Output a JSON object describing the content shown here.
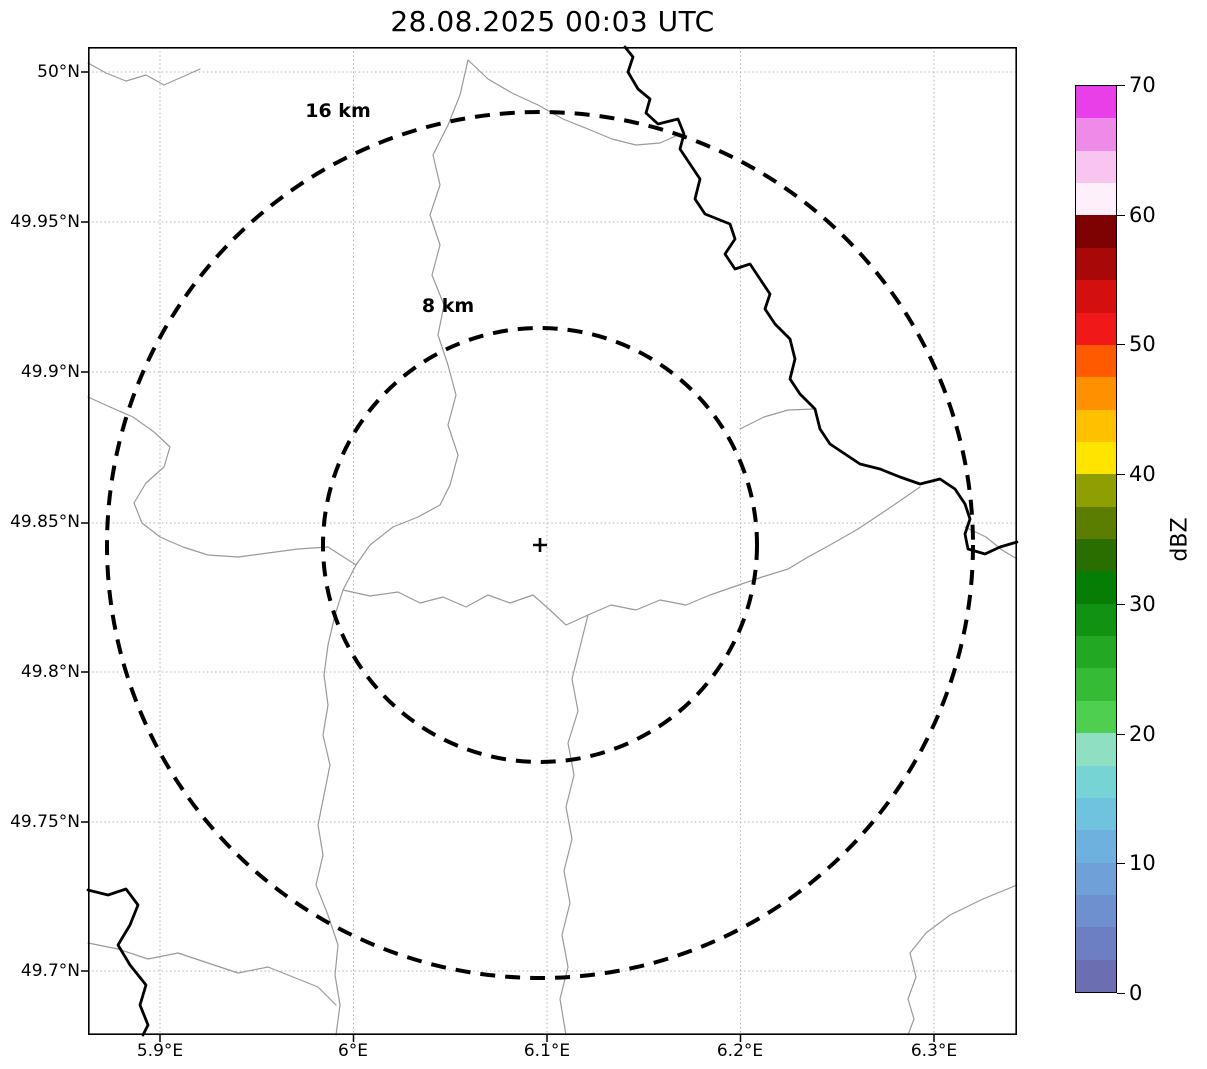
{
  "title": "28.08.2025 00:03 UTC",
  "axes": {
    "y_ticks": [
      "50°N",
      "49.95°N",
      "49.9°N",
      "49.85°N",
      "49.8°N",
      "49.75°N",
      "49.7°N"
    ],
    "x_ticks": [
      "5.9°E",
      "6°E",
      "6.1°E",
      "6.2°E",
      "6.3°E"
    ]
  },
  "rings": {
    "outer_label": "16 km",
    "inner_label": "8 km"
  },
  "colorbar": {
    "label": "dBZ",
    "min": 0,
    "max": 70,
    "ticks": [
      "0",
      "10",
      "20",
      "30",
      "40",
      "50",
      "60",
      "70"
    ],
    "tick_values": [
      0,
      10,
      20,
      30,
      40,
      50,
      60,
      70
    ],
    "colors": [
      "#6b6fb2",
      "#6d7fc2",
      "#6e90cf",
      "#6fa0d8",
      "#6fb1de",
      "#6fc3de",
      "#77d4d4",
      "#8fdfc3",
      "#4fcf4f",
      "#35bb35",
      "#22a822",
      "#129212",
      "#067e06",
      "#2a6e00",
      "#5c7e00",
      "#8f9e00",
      "#ffe400",
      "#ffc000",
      "#ff9000",
      "#ff5a00",
      "#f01818",
      "#d40f0f",
      "#a80808",
      "#7e0202",
      "#fdf0fb",
      "#f8c4f0",
      "#f08ae8",
      "#e93fe9"
    ]
  },
  "map_line_colors": {
    "boundary_gray": "#9a9a9a",
    "river_black": "#000000",
    "grid_gray": "#b3b3b3"
  },
  "chart_data": {
    "type": "heatmap",
    "title": "28.08.2025 00:03 UTC",
    "xlabel": "",
    "ylabel": "",
    "x_axis": {
      "tick_labels": [
        "5.9°E",
        "6°E",
        "6.1°E",
        "6.2°E",
        "6.3°E"
      ],
      "range_deg_e": [
        5.863,
        6.343
      ]
    },
    "y_axis": {
      "tick_labels": [
        "50°N",
        "49.95°N",
        "49.9°N",
        "49.85°N",
        "49.8°N",
        "49.75°N",
        "49.7°N"
      ],
      "range_deg_n": [
        49.679,
        50.008
      ]
    },
    "grid": true,
    "colorbar": {
      "label": "dBZ",
      "min": 0,
      "max": 70,
      "tick_values": [
        0,
        10,
        20,
        30,
        40,
        50,
        60,
        70
      ],
      "n_segments": 28
    },
    "radar_center": {
      "lon_deg_e": 6.096,
      "lat_deg_n": 49.843
    },
    "range_rings_km": [
      8,
      16
    ],
    "reflectivity_cells": [],
    "overlays": [
      "16 km range ring (dashed)",
      "8 km range ring (dashed)",
      "radar center cross marker",
      "thick black river line",
      "thin gray boundary/river lines"
    ]
  }
}
